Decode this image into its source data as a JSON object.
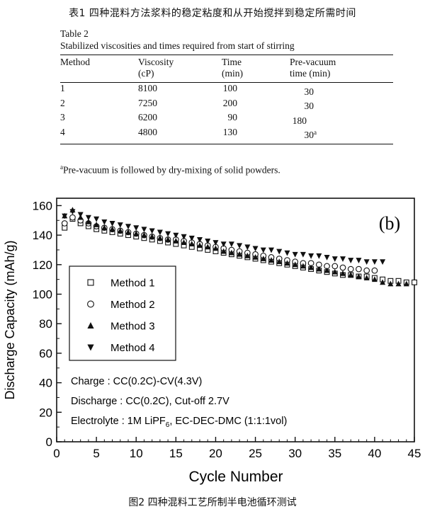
{
  "top_title": "表1 四种混料方法浆料的稳定粘度和从开始搅拌到稳定所需时间",
  "table": {
    "label": "Table 2",
    "caption": "Stabilized viscosities and times required from start of stirring",
    "headers": [
      {
        "line1": "Method",
        "line2": ""
      },
      {
        "line1": "Viscosity",
        "line2": "(cP)"
      },
      {
        "line1": "Time",
        "line2": "(min)"
      },
      {
        "line1": "Pre-vacuum",
        "line2": "time (min)"
      }
    ],
    "rows": [
      {
        "method": "1",
        "viscosity": "8100",
        "time": "100",
        "prevac": "30",
        "mark": ""
      },
      {
        "method": "2",
        "viscosity": "7250",
        "time": "200",
        "prevac": "30",
        "mark": ""
      },
      {
        "method": "3",
        "viscosity": "6200",
        "time": "90",
        "prevac": "180",
        "mark": ""
      },
      {
        "method": "4",
        "viscosity": "4800",
        "time": "130",
        "prevac": "30",
        "mark": "a"
      }
    ],
    "footnote_mark": "a",
    "footnote": "Pre-vacuum is followed by dry-mixing of solid powders."
  },
  "bottom_caption": "图2 四种混料工艺所制半电池循环测试",
  "chart_data": {
    "type": "scatter",
    "panel_label": "(b)",
    "xlabel": "Cycle Number",
    "ylabel": "Discharge Capacity (mAh/g)",
    "xlim": [
      0,
      45
    ],
    "ylim": [
      0,
      165
    ],
    "xticks": [
      0,
      5,
      10,
      15,
      20,
      25,
      30,
      35,
      40,
      45
    ],
    "yticks": [
      0,
      20,
      40,
      60,
      80,
      100,
      120,
      140,
      160
    ],
    "grid": false,
    "legend_position": "middle-left",
    "series": [
      {
        "name": "Method 1",
        "marker": "open-square",
        "x": [
          1,
          2,
          3,
          4,
          5,
          6,
          7,
          8,
          9,
          10,
          11,
          12,
          13,
          14,
          15,
          16,
          17,
          18,
          19,
          20,
          21,
          22,
          23,
          24,
          25,
          26,
          27,
          28,
          29,
          30,
          31,
          32,
          33,
          34,
          35,
          36,
          37,
          38,
          39,
          40,
          41,
          42,
          43,
          44,
          45
        ],
        "y": [
          145,
          151,
          148,
          146,
          144,
          143,
          142,
          141,
          140,
          139,
          138,
          137,
          136,
          135,
          134,
          133,
          132,
          131,
          130,
          129,
          128,
          127,
          126,
          125,
          124,
          123,
          122,
          121,
          120,
          119,
          118,
          117,
          116,
          115,
          114,
          113,
          113,
          112,
          112,
          111,
          110,
          109,
          109,
          108,
          108
        ]
      },
      {
        "name": "Method 2",
        "marker": "open-circle",
        "x": [
          1,
          2,
          3,
          4,
          5,
          6,
          7,
          8,
          9,
          10,
          11,
          12,
          13,
          14,
          15,
          16,
          17,
          18,
          19,
          20,
          21,
          22,
          23,
          24,
          25,
          26,
          27,
          28,
          29,
          30,
          31,
          32,
          33,
          34,
          35,
          36,
          37,
          38,
          39,
          40
        ],
        "y": [
          148,
          152,
          150,
          148,
          146,
          145,
          144,
          143,
          142,
          141,
          140,
          139,
          138,
          137,
          137,
          136,
          135,
          134,
          133,
          132,
          131,
          130,
          129,
          128,
          127,
          126,
          125,
          124,
          123,
          122,
          121,
          121,
          120,
          119,
          119,
          118,
          117,
          117,
          116,
          116
        ]
      },
      {
        "name": "Method 3",
        "marker": "filled-triangle-up",
        "x": [
          1,
          2,
          3,
          4,
          5,
          6,
          7,
          8,
          9,
          10,
          11,
          12,
          13,
          14,
          15,
          16,
          17,
          18,
          19,
          20,
          21,
          22,
          23,
          24,
          25,
          26,
          27,
          28,
          29,
          30,
          31,
          32,
          33,
          34,
          35,
          36,
          37,
          38,
          39,
          40,
          41,
          42,
          43,
          44
        ],
        "y": [
          153,
          157,
          152,
          149,
          147,
          145,
          144,
          143,
          142,
          141,
          140,
          139,
          138,
          137,
          136,
          135,
          134,
          133,
          132,
          131,
          129,
          128,
          127,
          126,
          125,
          124,
          123,
          122,
          121,
          120,
          119,
          118,
          117,
          116,
          115,
          114,
          113,
          112,
          111,
          110,
          108,
          107,
          107,
          107
        ]
      },
      {
        "name": "Method 4",
        "marker": "filled-triangle-down",
        "x": [
          1,
          2,
          3,
          4,
          5,
          6,
          7,
          8,
          9,
          10,
          11,
          12,
          13,
          14,
          15,
          16,
          17,
          18,
          19,
          20,
          21,
          22,
          23,
          24,
          25,
          26,
          27,
          28,
          29,
          30,
          31,
          32,
          33,
          34,
          35,
          36,
          37,
          38,
          39,
          40,
          41
        ],
        "y": [
          153,
          156,
          154,
          152,
          151,
          149,
          148,
          147,
          146,
          145,
          144,
          143,
          142,
          141,
          140,
          139,
          138,
          137,
          136,
          135,
          134,
          134,
          133,
          132,
          131,
          130,
          130,
          129,
          128,
          127,
          127,
          126,
          126,
          125,
          124,
          124,
          123,
          123,
          122,
          122,
          122
        ]
      }
    ],
    "annotations": {
      "charge": "Charge : CC(0.2C)-CV(4.3V)",
      "discharge": "Discharge : CC(0.2C), Cut-off 2.7V",
      "electrolyte_pre": "Electrolyte : 1M LiPF",
      "electrolyte_sub": "6",
      "electrolyte_post": ", EC-DEC-DMC (1:1:1vol)"
    }
  }
}
